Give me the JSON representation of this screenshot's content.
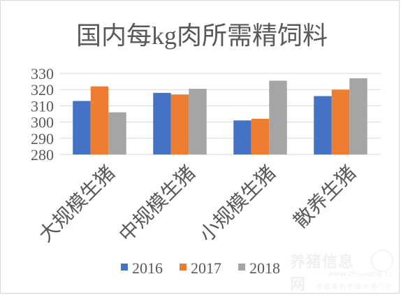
{
  "chart_data": {
    "type": "bar",
    "title": "国内每kg肉所需精饲料",
    "categories": [
      "大规模生猪",
      "中规模生猪",
      "小规模生猪",
      "散养生猪"
    ],
    "series": [
      {
        "name": "2016",
        "color": "#4472C4",
        "values": [
          313,
          318,
          301,
          316
        ]
      },
      {
        "name": "2017",
        "color": "#ED7D31",
        "values": [
          322,
          317,
          302,
          320
        ]
      },
      {
        "name": "2018",
        "color": "#A5A5A5",
        "values": [
          306,
          320.5,
          325.5,
          327
        ]
      }
    ],
    "ylim": [
      280,
      330
    ],
    "yticks": [
      280,
      290,
      300,
      310,
      320,
      330
    ],
    "grid": true,
    "legend": "bottom"
  },
  "watermark": {
    "line1": "养猪信息网",
    "line2": "www.zhuwang.cc",
    "line3": "中国畜牧养殖网络门户"
  }
}
